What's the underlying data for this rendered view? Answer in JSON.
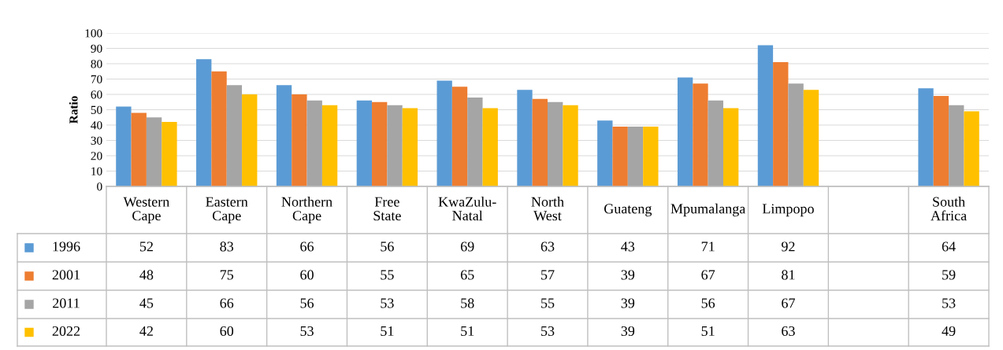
{
  "chart_data": {
    "type": "bar",
    "ylabel": "Ratio",
    "categories": [
      "Western Cape",
      "Eastern Cape",
      "Northern Cape",
      "Free State",
      "KwaZulu-Natal",
      "North West",
      "Guateng",
      "Mpumalanga",
      "Limpopo",
      null,
      "South Africa"
    ],
    "series": [
      {
        "name": "1996",
        "color": "#5b9bd5",
        "values": [
          52,
          83,
          66,
          56,
          69,
          63,
          43,
          71,
          92,
          null,
          64
        ]
      },
      {
        "name": "2001",
        "color": "#ed7d31",
        "values": [
          48,
          75,
          60,
          55,
          65,
          57,
          39,
          67,
          81,
          null,
          59
        ]
      },
      {
        "name": "2011",
        "color": "#a5a5a5",
        "values": [
          45,
          66,
          56,
          53,
          58,
          55,
          39,
          56,
          67,
          null,
          53
        ]
      },
      {
        "name": "2022",
        "color": "#ffc000",
        "values": [
          42,
          60,
          53,
          51,
          51,
          53,
          39,
          51,
          63,
          null,
          49
        ]
      }
    ],
    "ylim": [
      0,
      100
    ],
    "yticks": [
      0,
      10,
      20,
      30,
      40,
      50,
      60,
      70,
      80,
      90,
      100
    ],
    "grid": "y",
    "data_labels": true,
    "legend": "bottom"
  }
}
